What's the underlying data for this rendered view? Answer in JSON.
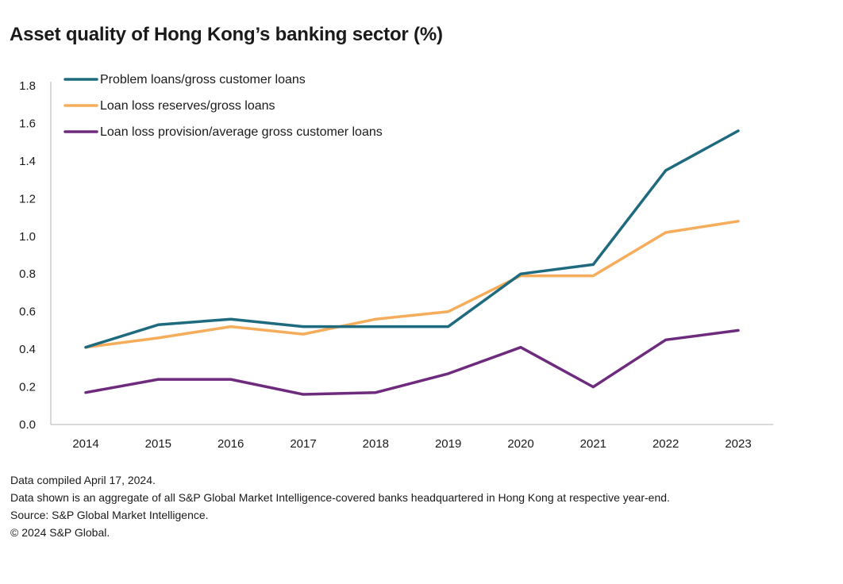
{
  "title": "Asset quality of Hong Kong’s banking sector (%)",
  "chart_data": {
    "type": "line",
    "x": [
      "2014",
      "2015",
      "2016",
      "2017",
      "2018",
      "2019",
      "2020",
      "2021",
      "2022",
      "2023"
    ],
    "ylim": [
      0,
      1.8
    ],
    "yticks": [
      "0.0",
      "0.2",
      "0.4",
      "0.6",
      "0.8",
      "1.0",
      "1.2",
      "1.4",
      "1.6",
      "1.8"
    ],
    "legend_position": "top-left",
    "series": [
      {
        "name": "Problem loans/gross customer loans",
        "color": "#1e6a7e",
        "values": [
          0.41,
          0.53,
          0.56,
          0.52,
          0.52,
          0.52,
          0.8,
          0.85,
          1.35,
          1.56
        ]
      },
      {
        "name": "Loan loss reserves/gross loans",
        "color": "#f5ad5c",
        "values": [
          0.41,
          0.46,
          0.52,
          0.48,
          0.56,
          0.6,
          0.79,
          0.79,
          1.02,
          1.08
        ]
      },
      {
        "name": "Loan loss provision/average gross customer loans",
        "color": "#6e2b7e",
        "values": [
          0.17,
          0.24,
          0.24,
          0.16,
          0.17,
          0.27,
          0.41,
          0.2,
          0.45,
          0.5
        ]
      }
    ]
  },
  "notes": {
    "compiled": "Data compiled April 17, 2024.",
    "description": "Data shown is an aggregate of all S&P Global Market Intelligence-covered banks headquartered in Hong Kong at respective year-end.",
    "source": "Source: S&P Global Market Intelligence.",
    "copyright": "© 2024 S&P Global."
  }
}
